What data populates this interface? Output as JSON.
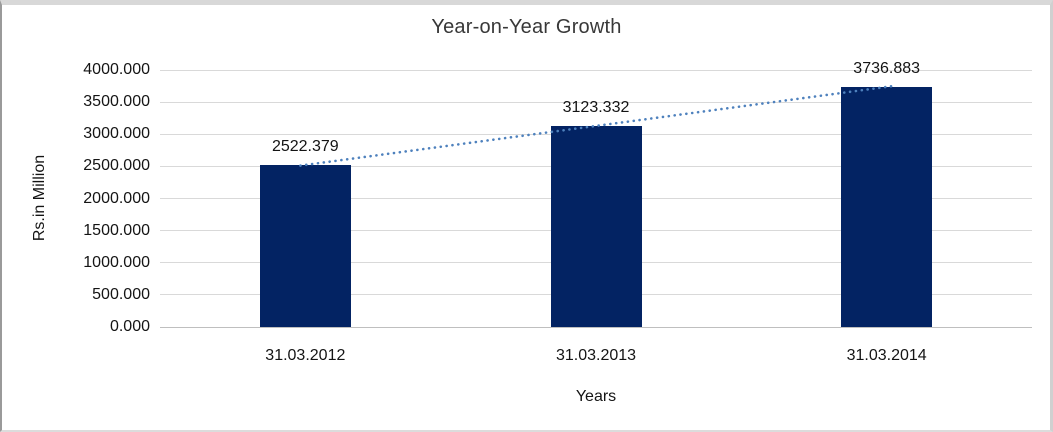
{
  "chart_data": {
    "type": "bar",
    "title": "Year-on-Year Growth",
    "categories": [
      "31.03.2012",
      "31.03.2013",
      "31.03.2014"
    ],
    "values": [
      2522.379,
      3123.332,
      3736.883
    ],
    "data_labels": [
      "2522.379",
      "3123.332",
      "3736.883"
    ],
    "xlabel": "Years",
    "ylabel": "Rs.in Million",
    "ylim": [
      0,
      4000
    ],
    "ytick_step": 500,
    "ytick_labels": [
      "0.000",
      "500.000",
      "1000.000",
      "1500.000",
      "2000.000",
      "2500.000",
      "3000.000",
      "3500.000",
      "4000.000"
    ],
    "grid": true,
    "legend": "none",
    "trendline": {
      "type": "linear",
      "style": "dotted"
    },
    "colors": {
      "bar": "#032363",
      "trendline": "#4e81bd",
      "gridline": "#d9d9d9",
      "axis_line": "#bfbfbf",
      "text": "#141414",
      "title_text": "#383838"
    }
  }
}
